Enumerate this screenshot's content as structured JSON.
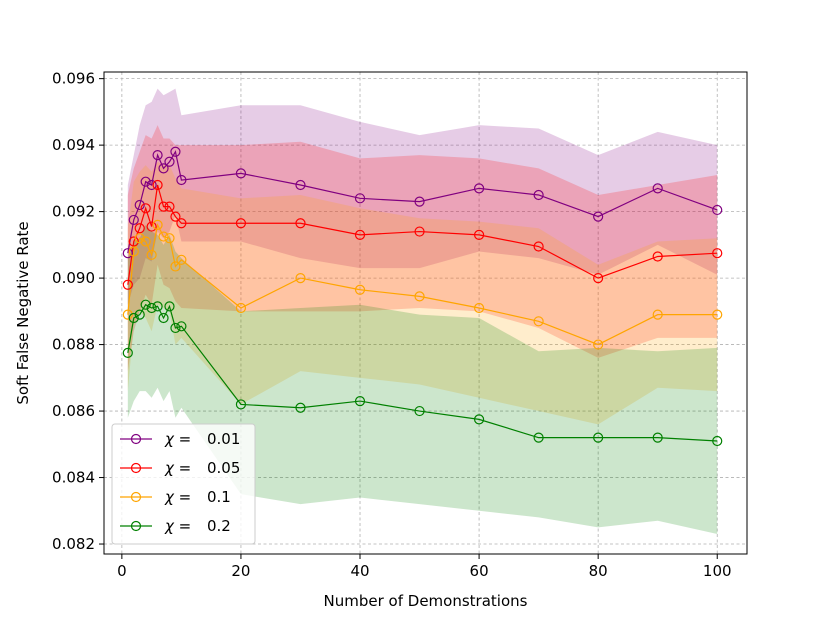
{
  "chart_data": {
    "type": "line",
    "title": "",
    "xlabel": "Number of Demonstrations",
    "ylabel": "Soft False Negative Rate",
    "xlim": [
      -3,
      105
    ],
    "ylim": [
      0.0817,
      0.0962
    ],
    "xticks": [
      0,
      20,
      40,
      60,
      80,
      100
    ],
    "yticks": [
      0.082,
      0.084,
      0.086,
      0.088,
      0.09,
      0.092,
      0.094,
      0.096
    ],
    "ytick_labels": [
      "0.082",
      "0.084",
      "0.086",
      "0.088",
      "0.090",
      "0.092",
      "0.094",
      "0.096"
    ],
    "grid": true,
    "legend_position": "lower-left",
    "x": [
      1,
      2,
      3,
      4,
      5,
      6,
      7,
      8,
      9,
      10,
      20,
      30,
      40,
      50,
      60,
      70,
      80,
      90,
      100
    ],
    "series": [
      {
        "name": "χ = 0.01",
        "legend_symbol": "χ =",
        "legend_value": "0.01",
        "color": "#800080",
        "values": [
          0.09075,
          0.09175,
          0.0922,
          0.0929,
          0.0928,
          0.0937,
          0.0933,
          0.0935,
          0.0938,
          0.09295,
          0.09315,
          0.0928,
          0.0924,
          0.0923,
          0.0927,
          0.0925,
          0.09185,
          0.0927,
          0.09205
        ],
        "upper": [
          0.0928,
          0.0937,
          0.0946,
          0.0952,
          0.0953,
          0.0957,
          0.0955,
          0.0956,
          0.0957,
          0.0949,
          0.0952,
          0.0952,
          0.0947,
          0.0943,
          0.0946,
          0.0945,
          0.0937,
          0.0944,
          0.094
        ],
        "lower": [
          0.0892,
          0.0898,
          0.09,
          0.0906,
          0.0905,
          0.0914,
          0.0912,
          0.0914,
          0.0919,
          0.0911,
          0.0911,
          0.0906,
          0.0903,
          0.0903,
          0.0908,
          0.0906,
          0.0901,
          0.091,
          0.0901
        ]
      },
      {
        "name": "χ = 0.05",
        "legend_symbol": "χ =",
        "legend_value": "0.05",
        "color": "#ff0000",
        "values": [
          0.0898,
          0.0911,
          0.0915,
          0.0921,
          0.09155,
          0.0928,
          0.09215,
          0.09215,
          0.09185,
          0.09165,
          0.09165,
          0.09165,
          0.0913,
          0.0914,
          0.0913,
          0.09095,
          0.09,
          0.09065,
          0.09075
        ],
        "upper": [
          0.0925,
          0.0933,
          0.0938,
          0.0943,
          0.0942,
          0.0946,
          0.0942,
          0.0942,
          0.094,
          0.094,
          0.094,
          0.0941,
          0.0936,
          0.0937,
          0.0936,
          0.0933,
          0.0925,
          0.0928,
          0.0931
        ],
        "lower": [
          0.0872,
          0.0884,
          0.089,
          0.0895,
          0.0892,
          0.0904,
          0.0898,
          0.0897,
          0.0893,
          0.0891,
          0.089,
          0.089,
          0.089,
          0.0891,
          0.089,
          0.0885,
          0.0876,
          0.0882,
          0.0882
        ]
      },
      {
        "name": "χ = 0.1",
        "legend_symbol": "χ =",
        "legend_value": "0.1",
        "color": "#ffa500",
        "values": [
          0.0889,
          0.0908,
          0.0912,
          0.0911,
          0.0907,
          0.0916,
          0.09125,
          0.0912,
          0.09035,
          0.09055,
          0.0891,
          0.09,
          0.08965,
          0.08945,
          0.0891,
          0.0887,
          0.088,
          0.0889,
          0.0889
        ],
        "upper": [
          0.0915,
          0.0929,
          0.0932,
          0.0934,
          0.0932,
          0.0935,
          0.0934,
          0.0934,
          0.093,
          0.0927,
          0.0924,
          0.0925,
          0.0921,
          0.0918,
          0.0917,
          0.0915,
          0.0904,
          0.0911,
          0.0912
        ],
        "lower": [
          0.0866,
          0.0886,
          0.089,
          0.0888,
          0.0884,
          0.0892,
          0.0891,
          0.089,
          0.088,
          0.0882,
          0.0862,
          0.0872,
          0.087,
          0.0868,
          0.0864,
          0.086,
          0.0856,
          0.0867,
          0.0866
        ]
      },
      {
        "name": "χ = 0.2",
        "legend_symbol": "χ =",
        "legend_value": "0.2",
        "color": "#008000",
        "values": [
          0.08775,
          0.0888,
          0.0889,
          0.0892,
          0.0891,
          0.08915,
          0.0888,
          0.08915,
          0.0885,
          0.08855,
          0.0862,
          0.0861,
          0.0863,
          0.086,
          0.08575,
          0.0852,
          0.0852,
          0.0852,
          0.0851
        ],
        "upper": [
          0.0906,
          0.0911,
          0.0912,
          0.0916,
          0.0914,
          0.0913,
          0.091,
          0.0913,
          0.0908,
          0.0906,
          0.089,
          0.0891,
          0.0892,
          0.0889,
          0.0888,
          0.0878,
          0.0879,
          0.0878,
          0.0879
        ],
        "lower": [
          0.0858,
          0.0863,
          0.0866,
          0.0866,
          0.0864,
          0.0867,
          0.0863,
          0.0866,
          0.0858,
          0.0861,
          0.0835,
          0.0832,
          0.0834,
          0.0832,
          0.083,
          0.0828,
          0.0825,
          0.0827,
          0.0823
        ]
      }
    ]
  }
}
